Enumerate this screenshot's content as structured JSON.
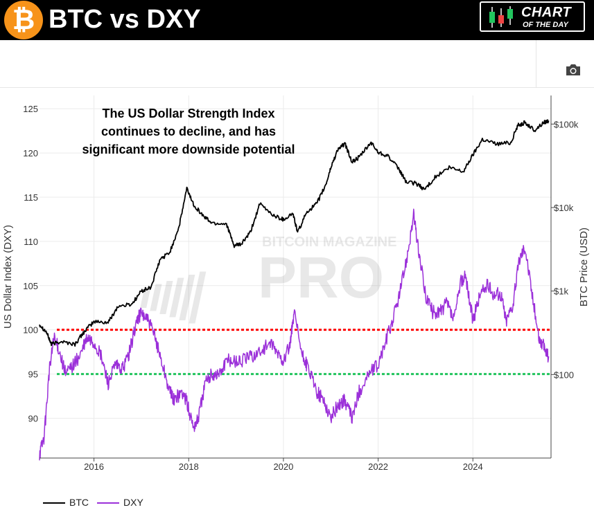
{
  "header": {
    "title": "BTC vs DXY",
    "logo_icon": "bitcoin-icon",
    "logo_glyph": "₿",
    "logo_color": "#f7931a",
    "badge_line1": "CHART",
    "badge_line2": "OF THE DAY",
    "badge_icon": "candlestick-icon"
  },
  "toolbar": {
    "camera_icon": "camera-icon"
  },
  "watermark": {
    "line1": "BITCOIN MAGAZINE",
    "line2": "PRO"
  },
  "chart_data": {
    "type": "line",
    "annotation": "The US Dollar Strength Index continues to decline, and has significant more downside potential",
    "annotation_lines": [
      "The US Dollar Strength Index",
      "continues to decline, and has",
      "significant more downside potential"
    ],
    "ylabel_left": "US Dollar Index (DXY)",
    "ylabel_right": "BTC Price (USD)",
    "xlim": [
      2014.85,
      2025.65
    ],
    "ylim_left": [
      85.5,
      126.5
    ],
    "ylim_right": [
      10,
      220000
    ],
    "right_axis_scale": "log",
    "x_ticks": [
      2016,
      2018,
      2020,
      2022,
      2024
    ],
    "x_tick_labels": [
      "2016",
      "2018",
      "2020",
      "2022",
      "2024"
    ],
    "y_left_ticks": [
      90,
      95,
      100,
      105,
      110,
      115,
      120,
      125
    ],
    "y_left_tick_labels": [
      "90",
      "95",
      "100",
      "105",
      "110",
      "115",
      "120",
      "125"
    ],
    "y_right_ticks": [
      100,
      1000,
      10000,
      100000
    ],
    "y_right_tick_labels": [
      "$100",
      "$1k",
      "$10k",
      "$100k"
    ],
    "grid": true,
    "legend_position": "bottom-left",
    "reference_lines": [
      {
        "axis": "left",
        "value": 100,
        "color": "#ff0000",
        "style": "dotted"
      },
      {
        "axis": "left",
        "value": 95,
        "color": "#22c55e",
        "style": "dotted"
      }
    ],
    "series": [
      {
        "name": "BTC",
        "axis": "right",
        "color": "#000000",
        "x": [
          2014.85,
          2015.0,
          2015.1,
          2015.3,
          2015.6,
          2015.8,
          2016.0,
          2016.3,
          2016.5,
          2016.8,
          2017.0,
          2017.2,
          2017.4,
          2017.6,
          2017.8,
          2017.96,
          2018.1,
          2018.3,
          2018.5,
          2018.8,
          2018.95,
          2019.1,
          2019.3,
          2019.5,
          2019.8,
          2020.0,
          2020.2,
          2020.3,
          2020.5,
          2020.7,
          2020.9,
          2021.0,
          2021.15,
          2021.3,
          2021.45,
          2021.6,
          2021.85,
          2022.0,
          2022.2,
          2022.45,
          2022.6,
          2022.8,
          2022.98,
          2023.2,
          2023.5,
          2023.8,
          2024.0,
          2024.2,
          2024.5,
          2024.8,
          2024.95,
          2025.1,
          2025.3,
          2025.5,
          2025.6
        ],
        "y": [
          400,
          320,
          230,
          250,
          230,
          330,
          430,
          420,
          650,
          700,
          1000,
          1100,
          2400,
          2900,
          6000,
          17000,
          11000,
          8000,
          6500,
          6400,
          3500,
          3600,
          5000,
          11000,
          8000,
          7200,
          8500,
          5000,
          9000,
          11000,
          19000,
          30000,
          50000,
          58000,
          35000,
          40000,
          60000,
          46000,
          42000,
          28000,
          20000,
          19500,
          16500,
          23000,
          30000,
          27000,
          43000,
          66000,
          58000,
          60000,
          97000,
          104000,
          84000,
          105000,
          110000
        ]
      },
      {
        "name": "DXY",
        "axis": "left",
        "color": "#9b30d9",
        "x": [
          2014.85,
          2014.95,
          2015.05,
          2015.15,
          2015.25,
          2015.4,
          2015.55,
          2015.7,
          2015.85,
          2016.0,
          2016.15,
          2016.3,
          2016.45,
          2016.6,
          2016.75,
          2016.9,
          2017.0,
          2017.15,
          2017.3,
          2017.45,
          2017.6,
          2017.7,
          2017.85,
          2017.95,
          2018.1,
          2018.2,
          2018.35,
          2018.5,
          2018.65,
          2018.8,
          2018.95,
          2019.1,
          2019.3,
          2019.5,
          2019.7,
          2019.85,
          2020.0,
          2020.15,
          2020.22,
          2020.4,
          2020.5,
          2020.7,
          2020.85,
          2021.0,
          2021.15,
          2021.3,
          2021.45,
          2021.6,
          2021.8,
          2022.0,
          2022.15,
          2022.3,
          2022.45,
          2022.6,
          2022.75,
          2022.85,
          2023.0,
          2023.15,
          2023.3,
          2023.45,
          2023.6,
          2023.75,
          2023.85,
          2024.0,
          2024.15,
          2024.3,
          2024.45,
          2024.6,
          2024.7,
          2024.85,
          2024.98,
          2025.1,
          2025.25,
          2025.4,
          2025.5,
          2025.6
        ],
        "y": [
          86,
          88,
          95,
          99,
          98,
          95,
          96,
          97,
          99,
          98.5,
          97,
          94,
          96,
          95.5,
          97.5,
          101,
          102,
          101,
          99,
          96,
          93,
          92,
          93,
          92,
          89,
          90,
          94,
          95,
          95,
          96.5,
          96.5,
          96.5,
          97,
          97.5,
          98.5,
          97.5,
          96.5,
          98.5,
          102,
          97,
          96,
          93,
          92,
          90,
          91.5,
          92,
          90,
          93,
          95,
          96,
          98.5,
          101,
          104,
          108,
          113,
          109,
          104,
          102,
          102,
          103,
          101,
          105.5,
          106,
          101,
          104,
          105,
          104,
          104,
          101,
          103,
          108,
          109.5,
          104,
          99,
          98,
          97
        ]
      }
    ]
  },
  "legend": {
    "items": [
      {
        "label": "BTC",
        "color": "#000000"
      },
      {
        "label": "DXY",
        "color": "#9b30d9"
      }
    ]
  }
}
